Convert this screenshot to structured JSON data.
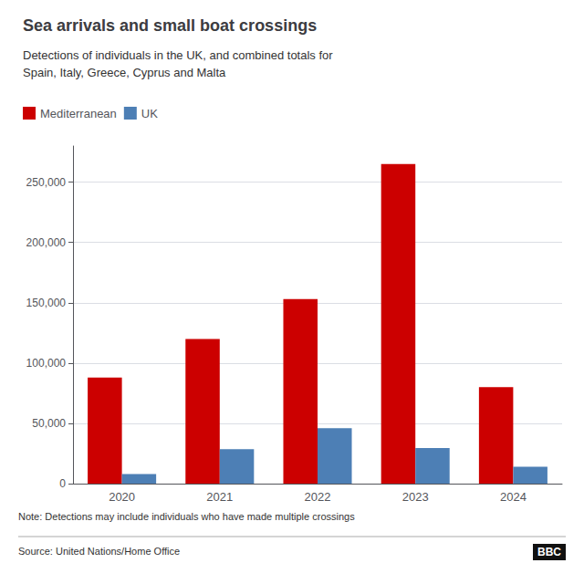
{
  "chart_data": {
    "type": "bar",
    "title": "Sea arrivals and small boat crossings",
    "subtitle": "Detections of individuals in the UK, and combined totals for\nSpain, Italy, Greece, Cyprus and Malta",
    "categories": [
      "2020",
      "2021",
      "2022",
      "2023",
      "2024"
    ],
    "series": [
      {
        "name": "Mediterranean",
        "color": "#cc0000",
        "values": [
          88000,
          120000,
          153000,
          265000,
          80000
        ]
      },
      {
        "name": "UK",
        "color": "#4d7fb5",
        "values": [
          8000,
          28500,
          46000,
          29500,
          14000
        ]
      }
    ],
    "ylim": [
      0,
      280000
    ],
    "yticks": [
      0,
      {
        "value": 50000,
        "label": "50,000"
      },
      {
        "value": 100000,
        "label": "100,000"
      },
      {
        "value": 150000,
        "label": "150,000"
      },
      {
        "value": 200000,
        "label": "200,000"
      },
      {
        "value": 250000,
        "label": "250,000"
      }
    ],
    "grid": true,
    "legend": "upper left",
    "annotations": [
      "Note: Detections may include individuals who have made multiple crossings",
      "Source: United Nations/Home Office",
      "BBC"
    ]
  }
}
